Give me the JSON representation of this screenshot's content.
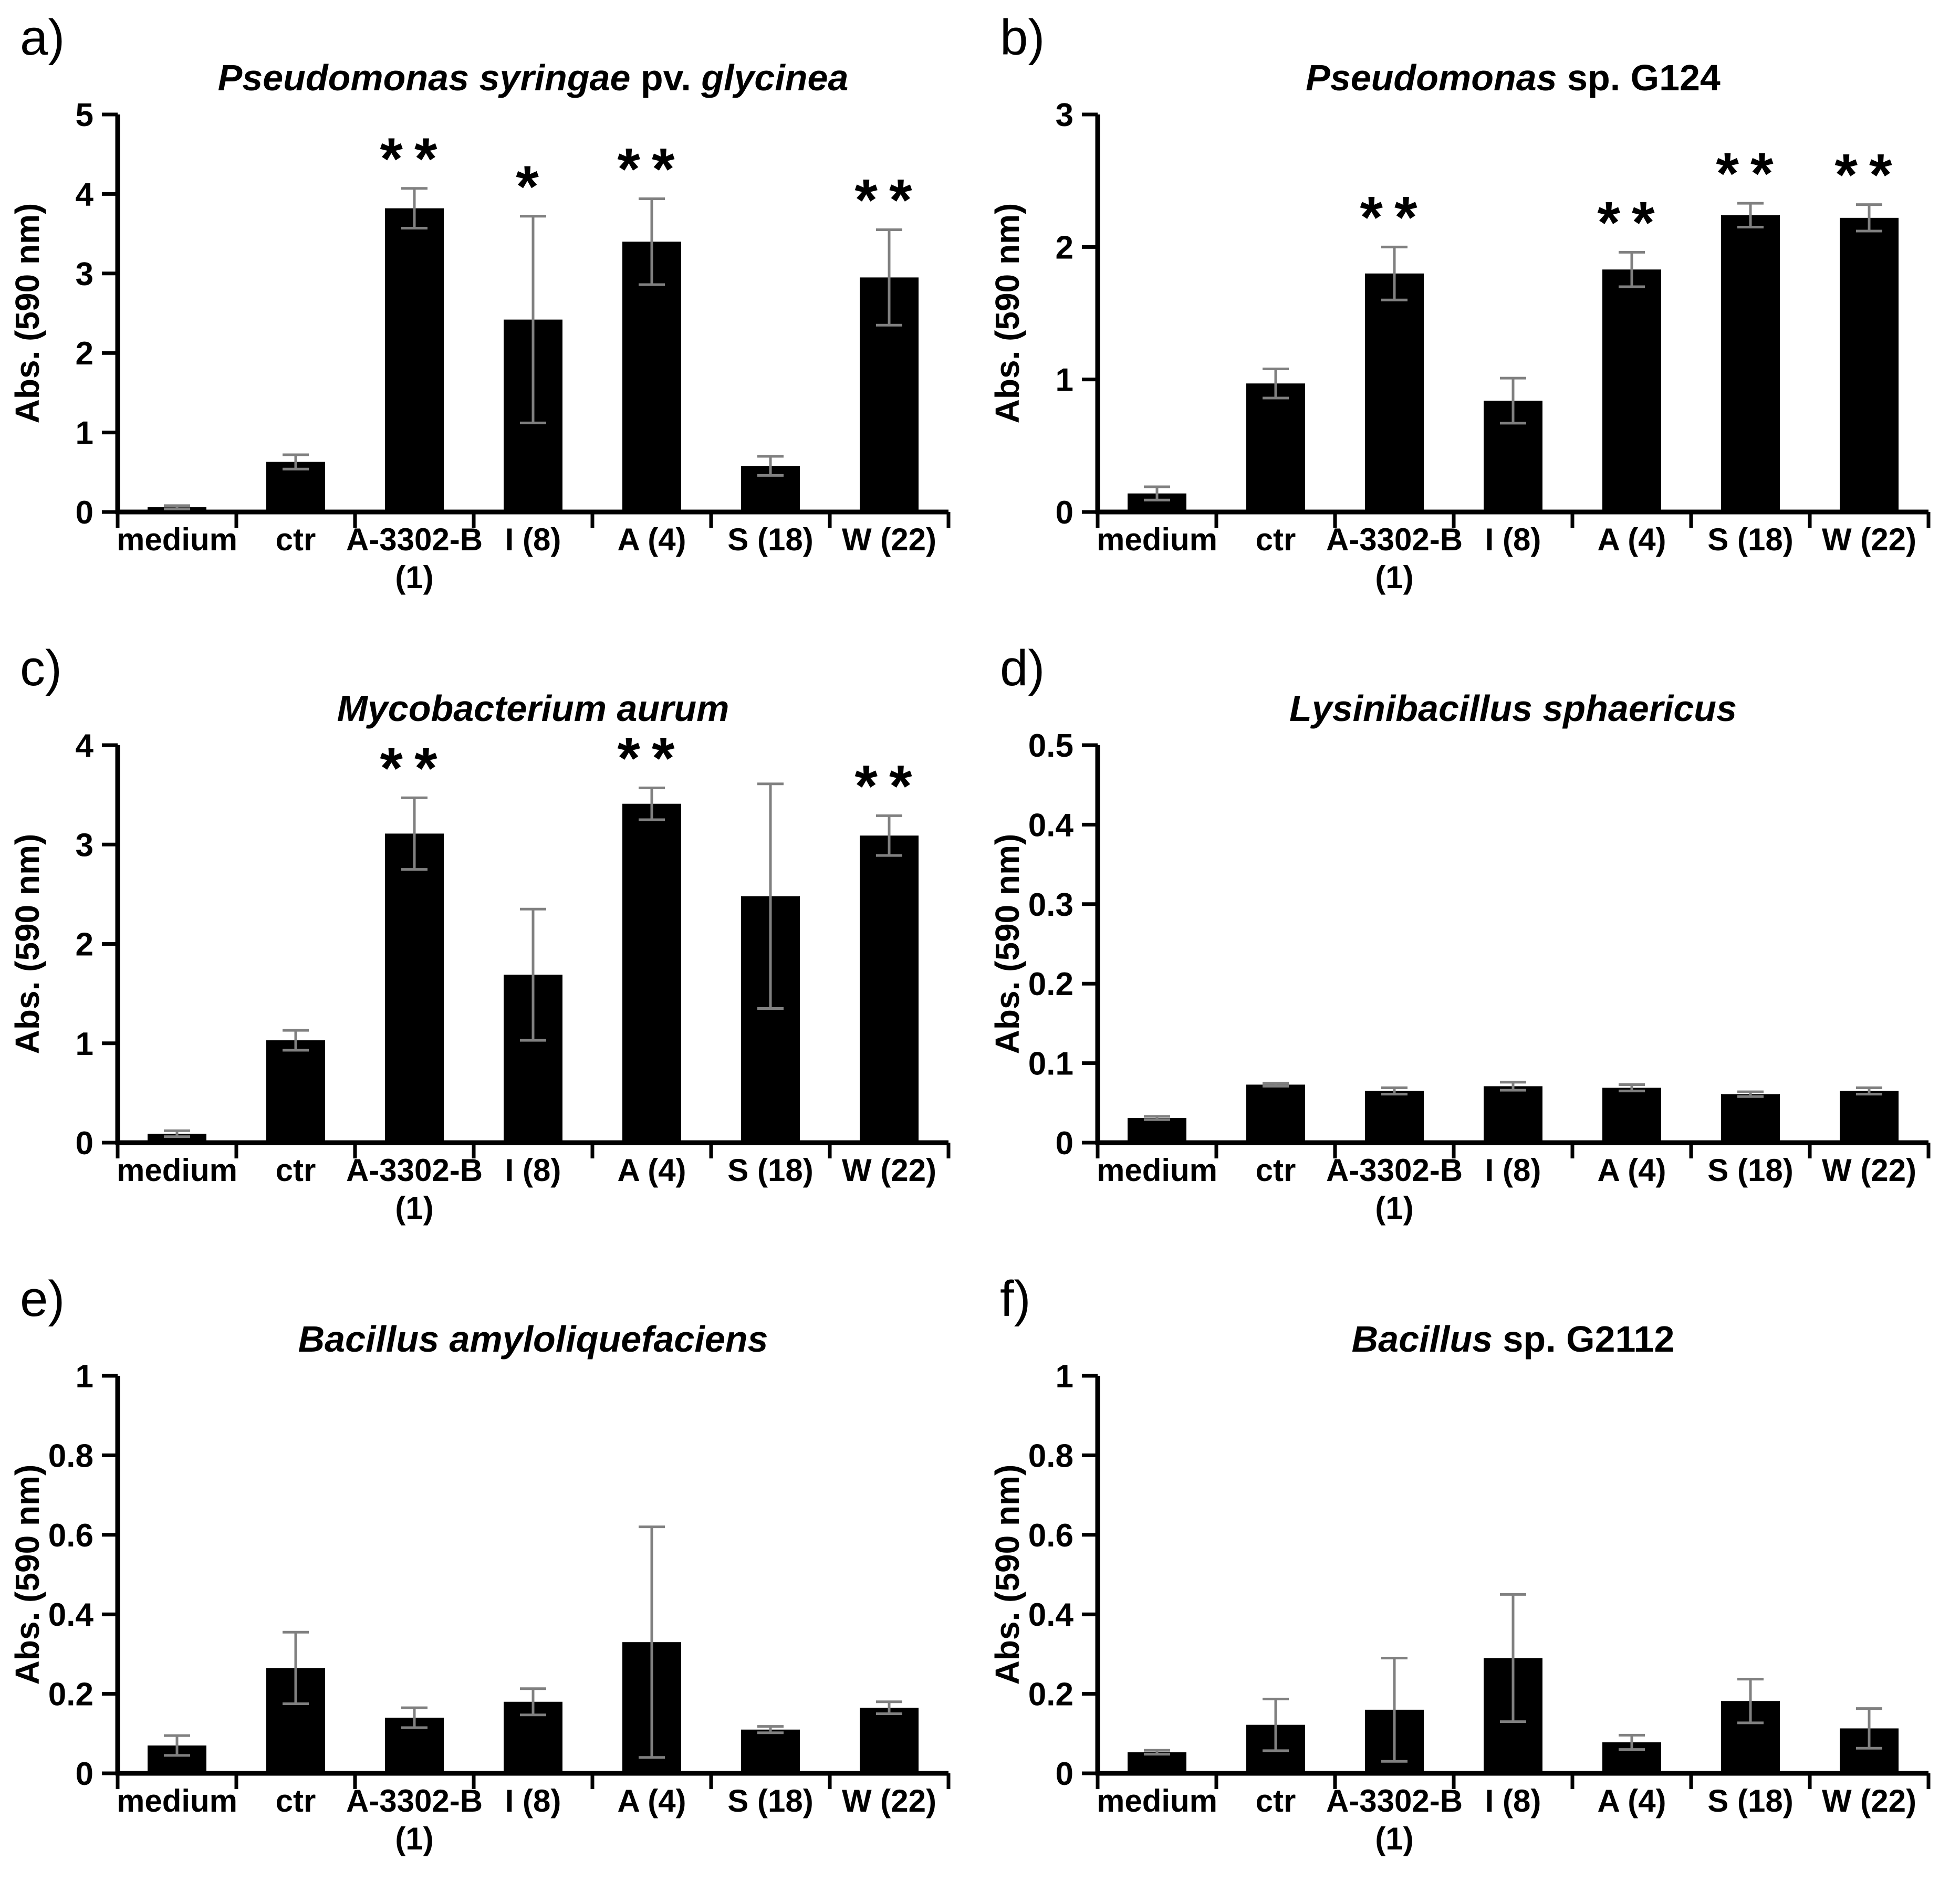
{
  "style": {
    "background_color": "#ffffff",
    "bar_color": "#000000",
    "error_bar_color": "#808080",
    "axis_color": "#000000",
    "text_color": "#000000"
  },
  "layout": {
    "grid": false,
    "legend": false,
    "rows": 3,
    "columns": 2,
    "category_label_lines": [
      [
        "medium"
      ],
      [
        "ctr"
      ],
      [
        "A-3302-B",
        "(1)"
      ],
      [
        "I (8)"
      ],
      [
        "A (4)"
      ],
      [
        "S (18)"
      ],
      [
        "W (22)"
      ]
    ]
  },
  "chart_data": [
    {
      "panel_letter": "a)",
      "type": "bar",
      "title": "Pseudomonas syringae pv. glycinea",
      "title_parts": [
        {
          "text": "Pseudomonas syringae ",
          "italic": true
        },
        {
          "text": "pv. ",
          "italic": false
        },
        {
          "text": "glycinea",
          "italic": true
        }
      ],
      "xlabel": "",
      "ylabel": "Abs. (590 nm)",
      "categories": [
        "medium",
        "ctr",
        "A-3302-B (1)",
        "I (8)",
        "A (4)",
        "S (18)",
        "W (22)"
      ],
      "values": [
        0.06,
        0.63,
        3.82,
        2.42,
        3.4,
        0.58,
        2.95
      ],
      "errors": [
        0.02,
        0.09,
        0.25,
        1.3,
        0.54,
        0.12,
        0.6
      ],
      "significance": [
        "",
        "",
        "**",
        "*",
        "**",
        "",
        "**"
      ],
      "ylim": [
        0,
        5
      ],
      "yticks": [
        "0",
        "1",
        "2",
        "3",
        "4",
        "5"
      ]
    },
    {
      "panel_letter": "b)",
      "type": "bar",
      "title": "Pseudomonas sp. G124",
      "title_parts": [
        {
          "text": "Pseudomonas ",
          "italic": true
        },
        {
          "text": "sp. G124",
          "italic": false
        }
      ],
      "xlabel": "",
      "ylabel": "Abs. (590 nm)",
      "categories": [
        "medium",
        "ctr",
        "A-3302-B (1)",
        "I (8)",
        "A (4)",
        "S (18)",
        "W (22)"
      ],
      "values": [
        0.14,
        0.97,
        1.8,
        0.84,
        1.83,
        2.24,
        2.22
      ],
      "errors": [
        0.05,
        0.11,
        0.2,
        0.17,
        0.13,
        0.09,
        0.1
      ],
      "significance": [
        "",
        "",
        "**",
        "",
        "**",
        "**",
        "**"
      ],
      "ylim": [
        0,
        3
      ],
      "yticks": [
        "0",
        "1",
        "2",
        "3"
      ]
    },
    {
      "panel_letter": "c)",
      "type": "bar",
      "title": "Mycobacterium aurum",
      "title_parts": [
        {
          "text": "Mycobacterium aurum",
          "italic": true
        }
      ],
      "xlabel": "",
      "ylabel": "Abs. (590 nm)",
      "categories": [
        "medium",
        "ctr",
        "A-3302-B (1)",
        "I (8)",
        "A (4)",
        "S (18)",
        "W (22)"
      ],
      "values": [
        0.09,
        1.03,
        3.11,
        1.69,
        3.41,
        2.48,
        3.09
      ],
      "errors": [
        0.03,
        0.1,
        0.36,
        0.66,
        0.16,
        1.13,
        0.2
      ],
      "significance": [
        "",
        "",
        "**",
        "",
        "**",
        "",
        "**"
      ],
      "ylim": [
        0,
        4
      ],
      "yticks": [
        "0",
        "1",
        "2",
        "3",
        "4"
      ]
    },
    {
      "panel_letter": "d)",
      "type": "bar",
      "title": "Lysinibacillus sphaericus",
      "title_parts": [
        {
          "text": "Lysinibacillus sphaericus",
          "italic": true
        }
      ],
      "xlabel": "",
      "ylabel": "Abs. (590 nm)",
      "categories": [
        "medium",
        "ctr",
        "A-3302-B (1)",
        "I (8)",
        "A (4)",
        "S (18)",
        "W (22)"
      ],
      "values": [
        0.031,
        0.073,
        0.065,
        0.071,
        0.069,
        0.061,
        0.065
      ],
      "errors": [
        0.002,
        0.002,
        0.004,
        0.005,
        0.004,
        0.003,
        0.004
      ],
      "significance": [
        "",
        "",
        "",
        "",
        "",
        "",
        ""
      ],
      "ylim": [
        0,
        0.5
      ],
      "yticks": [
        "0",
        "0.1",
        "0.2",
        "0.3",
        "0.4",
        "0.5"
      ]
    },
    {
      "panel_letter": "e)",
      "type": "bar",
      "title": "Bacillus amyloliquefaciens",
      "title_parts": [
        {
          "text": "Bacillus amyloliquefaciens",
          "italic": true
        }
      ],
      "xlabel": "",
      "ylabel": "Abs. (590 nm)",
      "categories": [
        "medium",
        "ctr",
        "A-3302-B (1)",
        "I (8)",
        "A (4)",
        "S (18)",
        "W (22)"
      ],
      "values": [
        0.07,
        0.265,
        0.14,
        0.18,
        0.33,
        0.11,
        0.165
      ],
      "errors": [
        0.025,
        0.09,
        0.025,
        0.033,
        0.29,
        0.008,
        0.015
      ],
      "significance": [
        "",
        "",
        "",
        "",
        "",
        "",
        ""
      ],
      "ylim": [
        0,
        1
      ],
      "yticks": [
        "0",
        "0.2",
        "0.4",
        "0.6",
        "0.8",
        "1"
      ]
    },
    {
      "panel_letter": "f)",
      "type": "bar",
      "title": "Bacillus sp. G2112",
      "title_parts": [
        {
          "text": "Bacillus ",
          "italic": true
        },
        {
          "text": "sp. G2112",
          "italic": false
        }
      ],
      "xlabel": "",
      "ylabel": "Abs. (590 nm)",
      "categories": [
        "medium",
        "ctr",
        "A-3302-B (1)",
        "I (8)",
        "A (4)",
        "S (18)",
        "W (22)"
      ],
      "values": [
        0.053,
        0.122,
        0.16,
        0.29,
        0.078,
        0.182,
        0.113
      ],
      "errors": [
        0.005,
        0.065,
        0.13,
        0.16,
        0.018,
        0.055,
        0.05
      ],
      "significance": [
        "",
        "",
        "",
        "",
        "",
        "",
        ""
      ],
      "ylim": [
        0,
        1
      ],
      "yticks": [
        "0",
        "0.2",
        "0.4",
        "0.6",
        "0.8",
        "1"
      ]
    }
  ]
}
